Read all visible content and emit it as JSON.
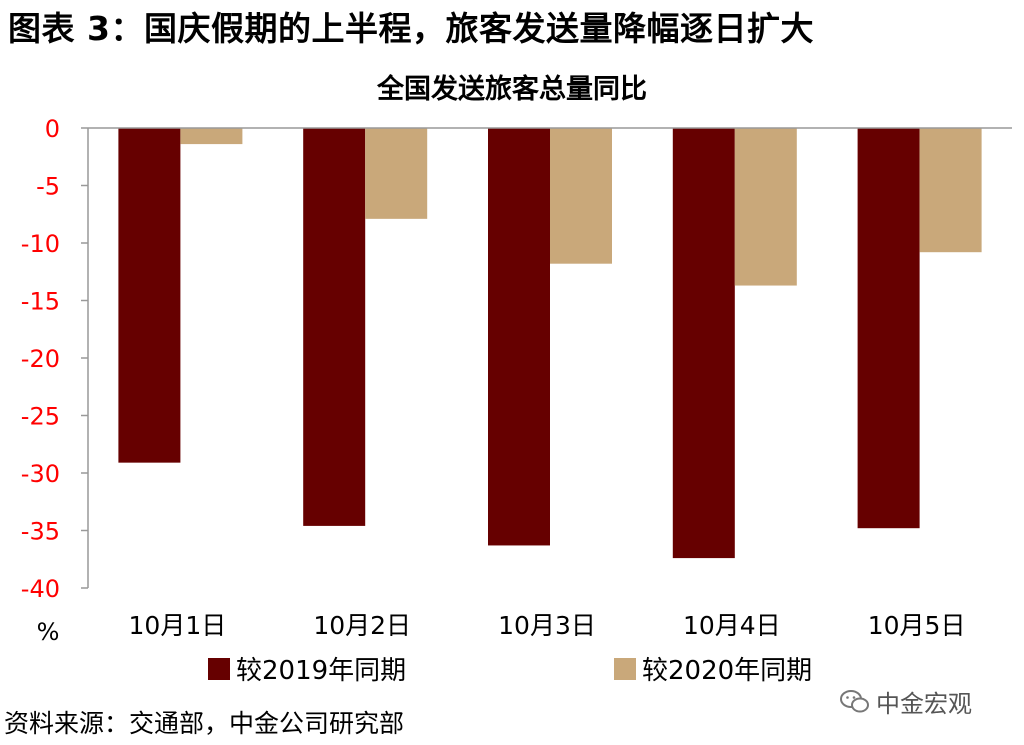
{
  "figure_title": "图表 3：国庆假期的上半程，旅客发送量降幅逐日扩大",
  "source": "资料来源：交通部，中金公司研究部",
  "watermark": "中金宏观",
  "chart_data": {
    "type": "bar",
    "title": "全国发送旅客总量同比",
    "categories": [
      "10月1日",
      "10月2日",
      "10月3日",
      "10月4日",
      "10月5日"
    ],
    "series": [
      {
        "name": "较2019年同期",
        "color": "#660000",
        "values": [
          -29.1,
          -34.6,
          -36.3,
          -37.4,
          -34.8
        ]
      },
      {
        "name": "较2020年同期",
        "color": "#c9a87a",
        "values": [
          -1.4,
          -7.9,
          -11.8,
          -13.7,
          -10.8
        ]
      }
    ],
    "ylabel": "%",
    "ylim": [
      -40,
      0
    ],
    "yticks": [
      0,
      -5,
      -10,
      -15,
      -20,
      -25,
      -30,
      -35,
      -40
    ],
    "tick_color": "#ff0000",
    "grid": false,
    "legend_position": "bottom"
  }
}
